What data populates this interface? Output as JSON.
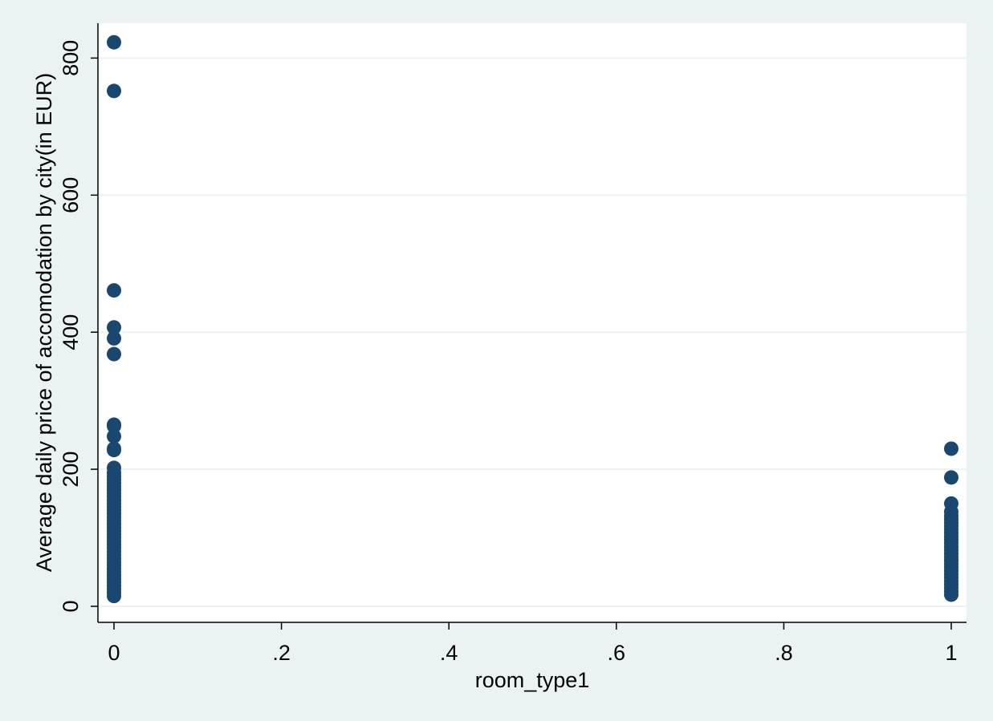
{
  "chart_data": {
    "type": "scatter",
    "title": "",
    "xlabel": "room_type1",
    "ylabel": "Average daily price of accomodation by city(in EUR)",
    "xlim": [
      0,
      1
    ],
    "ylim": [
      0,
      850
    ],
    "x_ticks": [
      {
        "value": 0,
        "label": "0"
      },
      {
        "value": 0.2,
        "label": ".2"
      },
      {
        "value": 0.4,
        "label": ".4"
      },
      {
        "value": 0.6,
        "label": ".6"
      },
      {
        "value": 0.8,
        "label": ".8"
      },
      {
        "value": 1,
        "label": "1"
      }
    ],
    "y_ticks": [
      {
        "value": 0,
        "label": "0"
      },
      {
        "value": 200,
        "label": "200"
      },
      {
        "value": 400,
        "label": "400"
      },
      {
        "value": 600,
        "label": "600"
      },
      {
        "value": 800,
        "label": "800"
      }
    ],
    "grid": true,
    "legend": "none",
    "marker_color": "#1a476f",
    "plot_background": "#ffffff",
    "outer_background": "#eaf2f3",
    "gridline_color": "#eaf2f3",
    "series": [
      {
        "points": [
          {
            "x": 0,
            "y": 823
          },
          {
            "x": 0,
            "y": 752
          },
          {
            "x": 0,
            "y": 461
          },
          {
            "x": 0,
            "y": 407
          },
          {
            "x": 0,
            "y": 391
          },
          {
            "x": 0,
            "y": 368
          },
          {
            "x": 0,
            "y": 265
          },
          {
            "x": 0,
            "y": 263
          },
          {
            "x": 0,
            "y": 248
          },
          {
            "x": 0,
            "y": 230
          },
          {
            "x": 0,
            "y": 228
          },
          {
            "x": 0,
            "y": 202
          },
          {
            "x": 0,
            "y": 195
          },
          {
            "x": 0,
            "y": 190
          },
          {
            "x": 0,
            "y": 185
          },
          {
            "x": 0,
            "y": 180
          },
          {
            "x": 0,
            "y": 175
          },
          {
            "x": 0,
            "y": 170
          },
          {
            "x": 0,
            "y": 165
          },
          {
            "x": 0,
            "y": 160
          },
          {
            "x": 0,
            "y": 155
          },
          {
            "x": 0,
            "y": 150
          },
          {
            "x": 0,
            "y": 145
          },
          {
            "x": 0,
            "y": 140
          },
          {
            "x": 0,
            "y": 135
          },
          {
            "x": 0,
            "y": 130
          },
          {
            "x": 0,
            "y": 125
          },
          {
            "x": 0,
            "y": 120
          },
          {
            "x": 0,
            "y": 115
          },
          {
            "x": 0,
            "y": 110
          },
          {
            "x": 0,
            "y": 105
          },
          {
            "x": 0,
            "y": 100
          },
          {
            "x": 0,
            "y": 95
          },
          {
            "x": 0,
            "y": 90
          },
          {
            "x": 0,
            "y": 85
          },
          {
            "x": 0,
            "y": 80
          },
          {
            "x": 0,
            "y": 75
          },
          {
            "x": 0,
            "y": 70
          },
          {
            "x": 0,
            "y": 65
          },
          {
            "x": 0,
            "y": 60
          },
          {
            "x": 0,
            "y": 55
          },
          {
            "x": 0,
            "y": 50
          },
          {
            "x": 0,
            "y": 45
          },
          {
            "x": 0,
            "y": 40
          },
          {
            "x": 0,
            "y": 35
          },
          {
            "x": 0,
            "y": 30
          },
          {
            "x": 0,
            "y": 25
          },
          {
            "x": 0,
            "y": 20
          },
          {
            "x": 0,
            "y": 15
          },
          {
            "x": 1,
            "y": 230
          },
          {
            "x": 1,
            "y": 188
          },
          {
            "x": 1,
            "y": 150
          },
          {
            "x": 1,
            "y": 138
          },
          {
            "x": 1,
            "y": 132
          },
          {
            "x": 1,
            "y": 127
          },
          {
            "x": 1,
            "y": 122
          },
          {
            "x": 1,
            "y": 117
          },
          {
            "x": 1,
            "y": 112
          },
          {
            "x": 1,
            "y": 107
          },
          {
            "x": 1,
            "y": 102
          },
          {
            "x": 1,
            "y": 97
          },
          {
            "x": 1,
            "y": 92
          },
          {
            "x": 1,
            "y": 87
          },
          {
            "x": 1,
            "y": 82
          },
          {
            "x": 1,
            "y": 77
          },
          {
            "x": 1,
            "y": 72
          },
          {
            "x": 1,
            "y": 67
          },
          {
            "x": 1,
            "y": 62
          },
          {
            "x": 1,
            "y": 57
          },
          {
            "x": 1,
            "y": 52
          },
          {
            "x": 1,
            "y": 47
          },
          {
            "x": 1,
            "y": 42
          },
          {
            "x": 1,
            "y": 37
          },
          {
            "x": 1,
            "y": 32
          },
          {
            "x": 1,
            "y": 27
          },
          {
            "x": 1,
            "y": 22
          },
          {
            "x": 1,
            "y": 17
          }
        ]
      }
    ]
  }
}
